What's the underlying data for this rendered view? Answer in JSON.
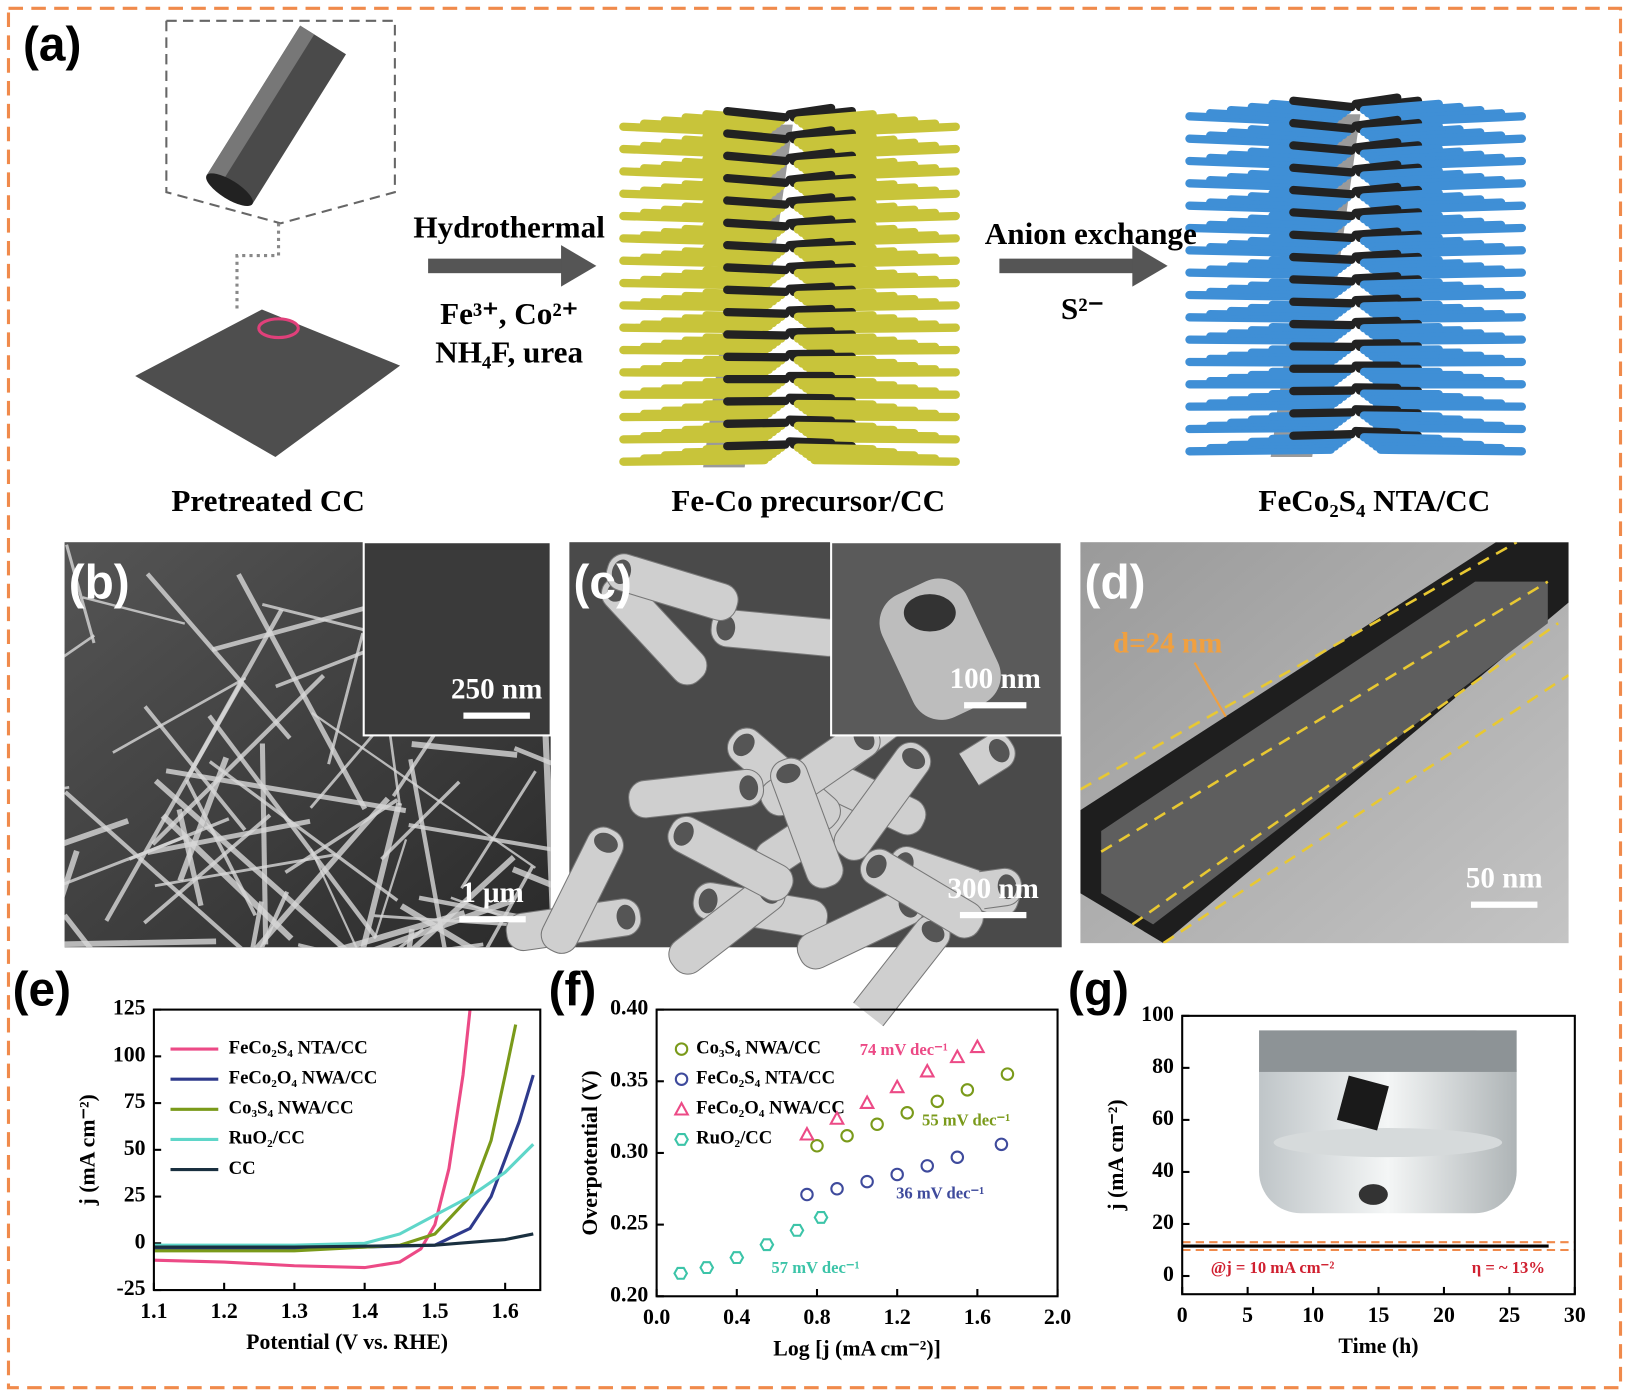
{
  "panel_labels": [
    "(a)",
    "(b)",
    "(c)",
    "(d)",
    "(e)",
    "(f)",
    "(g)"
  ],
  "schematic": {
    "step1": {
      "title": "Hydrothermal",
      "reagents": [
        "Fe³⁺, Co²⁺",
        "NH₄F, urea"
      ]
    },
    "step2": {
      "title": "Anion exchange",
      "reagents": [
        "S²⁻"
      ]
    },
    "captions": [
      "Pretreated CC",
      "Fe-Co precursor/CC",
      "FeCo₂S₄ NTA/CC"
    ]
  },
  "micrographs": {
    "b": {
      "scale_bars": [
        "250 nm",
        "1 μm"
      ]
    },
    "c": {
      "scale_bars": [
        "100 nm",
        "300 nm"
      ]
    },
    "d": {
      "scale_bars": [
        "50 nm"
      ],
      "annotation": "d=24 nm"
    }
  },
  "chart_data": [
    {
      "type": "line",
      "x_label": "Potential (V vs. RHE)",
      "y_label": "j (mA cm⁻²)",
      "xlim": [
        1.1,
        1.65
      ],
      "ylim": [
        -25,
        125
      ],
      "xticks": [
        1.1,
        1.2,
        1.3,
        1.4,
        1.5,
        1.6
      ],
      "yticks": [
        -25,
        0,
        25,
        50,
        75,
        100,
        125
      ],
      "legend": "upper left",
      "series": [
        {
          "name": "FeCo₂S₄ NTA/CC",
          "color": "#ec4a86",
          "x": [
            1.1,
            1.2,
            1.3,
            1.4,
            1.45,
            1.48,
            1.5,
            1.52,
            1.54,
            1.55
          ],
          "values": [
            -9,
            -10,
            -12,
            -13,
            -10,
            -3,
            10,
            40,
            90,
            125
          ]
        },
        {
          "name": "FeCo₂O₄ NWA/CC",
          "color": "#2e3a8c",
          "x": [
            1.1,
            1.3,
            1.5,
            1.55,
            1.58,
            1.6,
            1.62,
            1.64
          ],
          "values": [
            -3,
            -3,
            -1,
            8,
            25,
            45,
            65,
            90
          ]
        },
        {
          "name": "Co₃S₄ NWA/CC",
          "color": "#7a9a1a",
          "x": [
            1.1,
            1.3,
            1.45,
            1.5,
            1.55,
            1.58,
            1.6,
            1.615
          ],
          "values": [
            -4,
            -4,
            -1,
            5,
            25,
            55,
            90,
            117
          ]
        },
        {
          "name": "RuO₂/CC",
          "color": "#5fd6c9",
          "x": [
            1.1,
            1.3,
            1.4,
            1.45,
            1.5,
            1.55,
            1.6,
            1.64
          ],
          "values": [
            -1,
            -1,
            0,
            5,
            15,
            25,
            38,
            53
          ]
        },
        {
          "name": "CC",
          "color": "#1a3040",
          "x": [
            1.1,
            1.3,
            1.5,
            1.6,
            1.64
          ],
          "values": [
            -2,
            -2,
            -1,
            2,
            5
          ]
        }
      ]
    },
    {
      "type": "scatter",
      "x_label": "Log [j (mA cm⁻²)]",
      "y_label": "Overpotential (V)",
      "xlim": [
        0,
        2
      ],
      "ylim": [
        0.2,
        0.4
      ],
      "xticks": [
        {
          "value": 0,
          "label": "0.0"
        },
        0.4,
        0.8,
        1.2,
        1.6,
        {
          "value": 2,
          "label": "2.0"
        }
      ],
      "yticks": [
        {
          "value": 0.2,
          "label": "0.20"
        },
        0.25,
        {
          "value": 0.3,
          "label": "0.30"
        },
        0.35,
        {
          "value": 0.4,
          "label": "0.40"
        }
      ],
      "legend": "upper left",
      "series": [
        {
          "name": "Co₃S₄ NWA/CC",
          "color": "#7a9a1a",
          "marker": "circle",
          "x": [
            0.8,
            0.95,
            1.1,
            1.25,
            1.4,
            1.55,
            1.75
          ],
          "values": [
            0.305,
            0.312,
            0.32,
            0.328,
            0.336,
            0.344,
            0.355
          ]
        },
        {
          "name": "FeCo₂S₄ NTA/CC",
          "color": "#3e4a9c",
          "marker": "circle",
          "x": [
            0.75,
            0.9,
            1.05,
            1.2,
            1.35,
            1.5,
            1.72
          ],
          "values": [
            0.271,
            0.275,
            0.28,
            0.285,
            0.291,
            0.297,
            0.306
          ]
        },
        {
          "name": "FeCo₂O₄ NWA/CC",
          "color": "#ec4a86",
          "marker": "triangle",
          "x": [
            0.75,
            0.9,
            1.05,
            1.2,
            1.35,
            1.5,
            1.6
          ],
          "values": [
            0.313,
            0.324,
            0.335,
            0.346,
            0.357,
            0.367,
            0.374
          ]
        },
        {
          "name": "RuO₂/CC",
          "color": "#3cc4a8",
          "marker": "hexagon",
          "x": [
            0.12,
            0.25,
            0.4,
            0.55,
            0.7,
            0.82
          ],
          "values": [
            0.216,
            0.22,
            0.227,
            0.236,
            0.246,
            0.255
          ]
        }
      ],
      "annotations": [
        "74 mV dec⁻¹",
        "55 mV dec⁻¹",
        "36 mV dec⁻¹",
        "57 mV dec⁻¹"
      ]
    },
    {
      "type": "line",
      "x_label": "Time (h)",
      "y_label": "j (mA cm⁻²)",
      "xlim": [
        0,
        30
      ],
      "ylim": [
        -7,
        100
      ],
      "xticks": [
        0,
        5,
        10,
        15,
        20,
        25,
        30
      ],
      "yticks": [
        0,
        20,
        40,
        60,
        80,
        100
      ],
      "series": [
        {
          "color": "#000000",
          "x": [
            0,
            28
          ],
          "values": [
            11.5,
            11.5
          ]
        }
      ],
      "ref_lines": [
        13,
        10
      ],
      "ref_color": "#f08a4b",
      "annotations": [
        "@j = 10 mA cm⁻²",
        "η = ~ 13%"
      ]
    }
  ]
}
